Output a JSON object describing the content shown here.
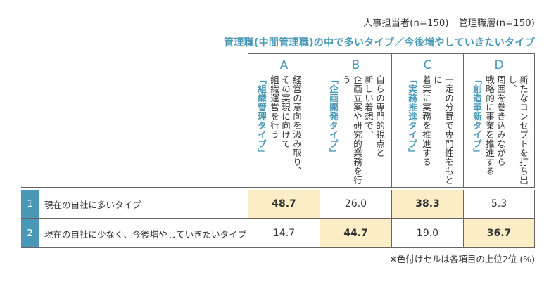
{
  "header": {
    "legend": [
      "人事担当者(n=150)",
      "管理職層(n=150)"
    ],
    "subtitle": "管理職(中間管理職)の中で多いタイプ／今後増やしていきたいタイプ"
  },
  "columns": [
    {
      "letter": "A",
      "description": "経営の意向を汲み取り、\nその実現に向けて\n組織運営を行う",
      "type_label": "「組織管理タイプ」"
    },
    {
      "letter": "B",
      "description": "自らの専門的視点と\n新しい着想で、\n企画立案や研究的業務を行う",
      "type_label": "「企画開発タイプ」"
    },
    {
      "letter": "C",
      "description": "一定の分野で専門性をもとに\n着実に実務を推進する",
      "type_label": "「実務推進タイプ」"
    },
    {
      "letter": "D",
      "description": "新たなコンセプトを打ち出し、\n周囲を巻き込みながら\n戦略的に事業を推進する",
      "type_label": "「創造革新タイプ」"
    }
  ],
  "rows": [
    {
      "num": "1",
      "label": "現在の自社に多いタイプ",
      "values": [
        "48.7",
        "26.0",
        "38.3",
        "5.3"
      ]
    },
    {
      "num": "2",
      "label": "現在の自社に少なく、今後増やしていきたいタイプ",
      "values": [
        "14.7",
        "44.7",
        "19.0",
        "36.7"
      ]
    }
  ],
  "footnote": "※色付けセルは各項目の上位2位 (%)",
  "chart_data": {
    "type": "table",
    "columns": [
      "A",
      "B",
      "C",
      "D"
    ],
    "rows": [
      {
        "label": "現在の自社に多いタイプ",
        "values": [
          48.7,
          26.0,
          38.3,
          5.3
        ],
        "highlighted": [
          "A",
          "C"
        ]
      },
      {
        "label": "現在の自社に少なく、今後増やしていきたいタイプ",
        "values": [
          14.7,
          44.7,
          19.0,
          36.7
        ],
        "highlighted": [
          "B",
          "D"
        ]
      }
    ],
    "unit": "%"
  },
  "colors": {
    "accent": "#4a98b8",
    "highlight": "#fbeec7"
  }
}
